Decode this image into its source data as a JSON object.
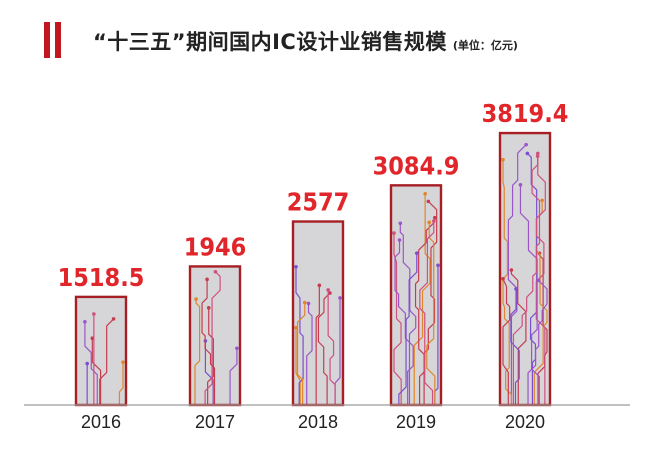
{
  "header": {
    "title": "“十三五”期间国内IC设计业销售规模",
    "unit": "(单位：亿元)"
  },
  "colors": {
    "accent": "#c0181e",
    "value_label": "#e1262b",
    "bar_fill": "#d6d6d8",
    "bar_border": "#a71e24",
    "axis": "#9a9a9a",
    "tick_label": "#222222",
    "circuit_traces": [
      "#c63c4f",
      "#9b55c8",
      "#e0862a",
      "#7a4fd0",
      "#d05080"
    ]
  },
  "chart_data": {
    "type": "bar",
    "title": "“十三五”期间国内IC设计业销售规模",
    "unit": "(单位：亿元)",
    "categories": [
      "2016",
      "2017",
      "2018",
      "2019",
      "2020"
    ],
    "values": [
      1518.5,
      1946,
      2577,
      3084.9,
      3819.4
    ],
    "value_labels": [
      "1518.5",
      "1946",
      "2577",
      "3084.9",
      "3819.4"
    ],
    "bar_style": "circuit-board pattern",
    "grid": false,
    "legend": "none"
  }
}
